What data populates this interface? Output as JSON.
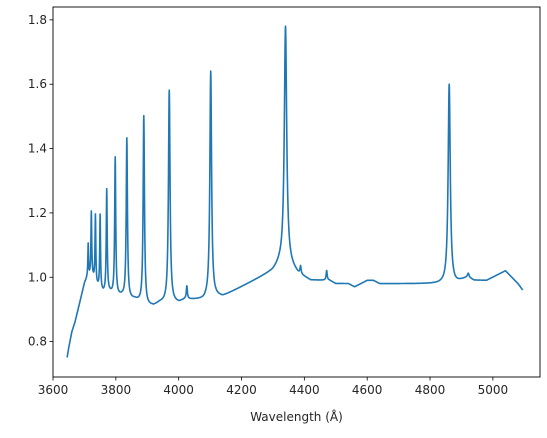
{
  "chart_data": {
    "type": "line",
    "title": "",
    "xlabel": "Wavelength (Å)",
    "ylabel": "",
    "xlim": [
      3600,
      5150
    ],
    "ylim": [
      0.69,
      1.84
    ],
    "grid": false,
    "xticks": [
      3600,
      3800,
      4000,
      4200,
      4400,
      4600,
      4800,
      5000
    ],
    "yticks": [
      0.8,
      1.0,
      1.2,
      1.4,
      1.6,
      1.8
    ],
    "series": [
      {
        "color": "#1f77b4",
        "continuum": [
          [
            3645,
            0.75
          ],
          [
            3650,
            0.78
          ],
          [
            3660,
            0.83
          ],
          [
            3670,
            0.86
          ],
          [
            3680,
            0.9
          ],
          [
            3690,
            0.94
          ],
          [
            3700,
            0.98
          ],
          [
            3710,
            1.0
          ],
          [
            3725,
            1.0
          ],
          [
            3740,
            0.97
          ],
          [
            3760,
            0.95
          ],
          [
            3780,
            0.95
          ],
          [
            3800,
            0.94
          ],
          [
            3820,
            0.94
          ],
          [
            3840,
            0.93
          ],
          [
            3860,
            0.93
          ],
          [
            3880,
            0.92
          ],
          [
            3900,
            0.91
          ],
          [
            3920,
            0.91
          ],
          [
            3940,
            0.92
          ],
          [
            3960,
            0.92
          ],
          [
            3980,
            0.92
          ],
          [
            4000,
            0.92
          ],
          [
            4020,
            0.93
          ],
          [
            4040,
            0.93
          ],
          [
            4060,
            0.93
          ],
          [
            4080,
            0.93
          ],
          [
            4100,
            0.94
          ],
          [
            4120,
            0.94
          ],
          [
            4140,
            0.94
          ],
          [
            4160,
            0.95
          ],
          [
            4180,
            0.96
          ],
          [
            4200,
            0.97
          ],
          [
            4220,
            0.98
          ],
          [
            4240,
            0.99
          ],
          [
            4260,
            1.0
          ],
          [
            4280,
            1.01
          ],
          [
            4300,
            1.02
          ],
          [
            4320,
            1.04
          ],
          [
            4340,
            1.05
          ],
          [
            4360,
            1.03
          ],
          [
            4380,
            1.01
          ],
          [
            4400,
            1.0
          ],
          [
            4420,
            0.99
          ],
          [
            4440,
            0.99
          ],
          [
            4460,
            0.99
          ],
          [
            4480,
            0.99
          ],
          [
            4500,
            0.98
          ],
          [
            4520,
            0.98
          ],
          [
            4540,
            0.98
          ],
          [
            4560,
            0.97
          ],
          [
            4580,
            0.98
          ],
          [
            4600,
            0.99
          ],
          [
            4620,
            0.99
          ],
          [
            4640,
            0.98
          ],
          [
            4660,
            0.98
          ],
          [
            4680,
            0.98
          ],
          [
            4700,
            0.98
          ],
          [
            4720,
            0.98
          ],
          [
            4740,
            0.98
          ],
          [
            4760,
            0.98
          ],
          [
            4780,
            0.98
          ],
          [
            4800,
            0.98
          ],
          [
            4820,
            0.98
          ],
          [
            4840,
            0.98
          ],
          [
            4860,
            0.98
          ],
          [
            4880,
            0.98
          ],
          [
            4900,
            0.99
          ],
          [
            4920,
            1.0
          ],
          [
            4940,
            0.99
          ],
          [
            4960,
            0.99
          ],
          [
            4980,
            0.99
          ],
          [
            5000,
            1.0
          ],
          [
            5020,
            1.01
          ],
          [
            5040,
            1.02
          ],
          [
            5060,
            1.0
          ],
          [
            5080,
            0.98
          ],
          [
            5095,
            0.96
          ]
        ],
        "lines": [
          {
            "x": 3712,
            "peak": 1.1,
            "width": 1.2
          },
          {
            "x": 3722,
            "peak": 1.2,
            "width": 1.5
          },
          {
            "x": 3735,
            "peak": 1.19,
            "width": 1.5
          },
          {
            "x": 3750,
            "peak": 1.19,
            "width": 1.5
          },
          {
            "x": 3771,
            "peak": 1.27,
            "width": 1.8
          },
          {
            "x": 3798,
            "peak": 1.37,
            "width": 2.0
          },
          {
            "x": 3835,
            "peak": 1.43,
            "width": 2.3
          },
          {
            "x": 3889,
            "peak": 1.5,
            "width": 2.5
          },
          {
            "x": 3970,
            "peak": 1.58,
            "width": 3.0
          },
          {
            "x": 4026,
            "peak": 0.97,
            "width": 2.0
          },
          {
            "x": 4102,
            "peak": 1.64,
            "width": 3.2
          },
          {
            "x": 4340,
            "peak": 1.78,
            "width": 4.5
          },
          {
            "x": 4388,
            "peak": 1.03,
            "width": 2.0
          },
          {
            "x": 4471,
            "peak": 1.02,
            "width": 2.0
          },
          {
            "x": 4861,
            "peak": 1.6,
            "width": 4.0
          },
          {
            "x": 4922,
            "peak": 1.01,
            "width": 2.5
          }
        ]
      }
    ]
  }
}
